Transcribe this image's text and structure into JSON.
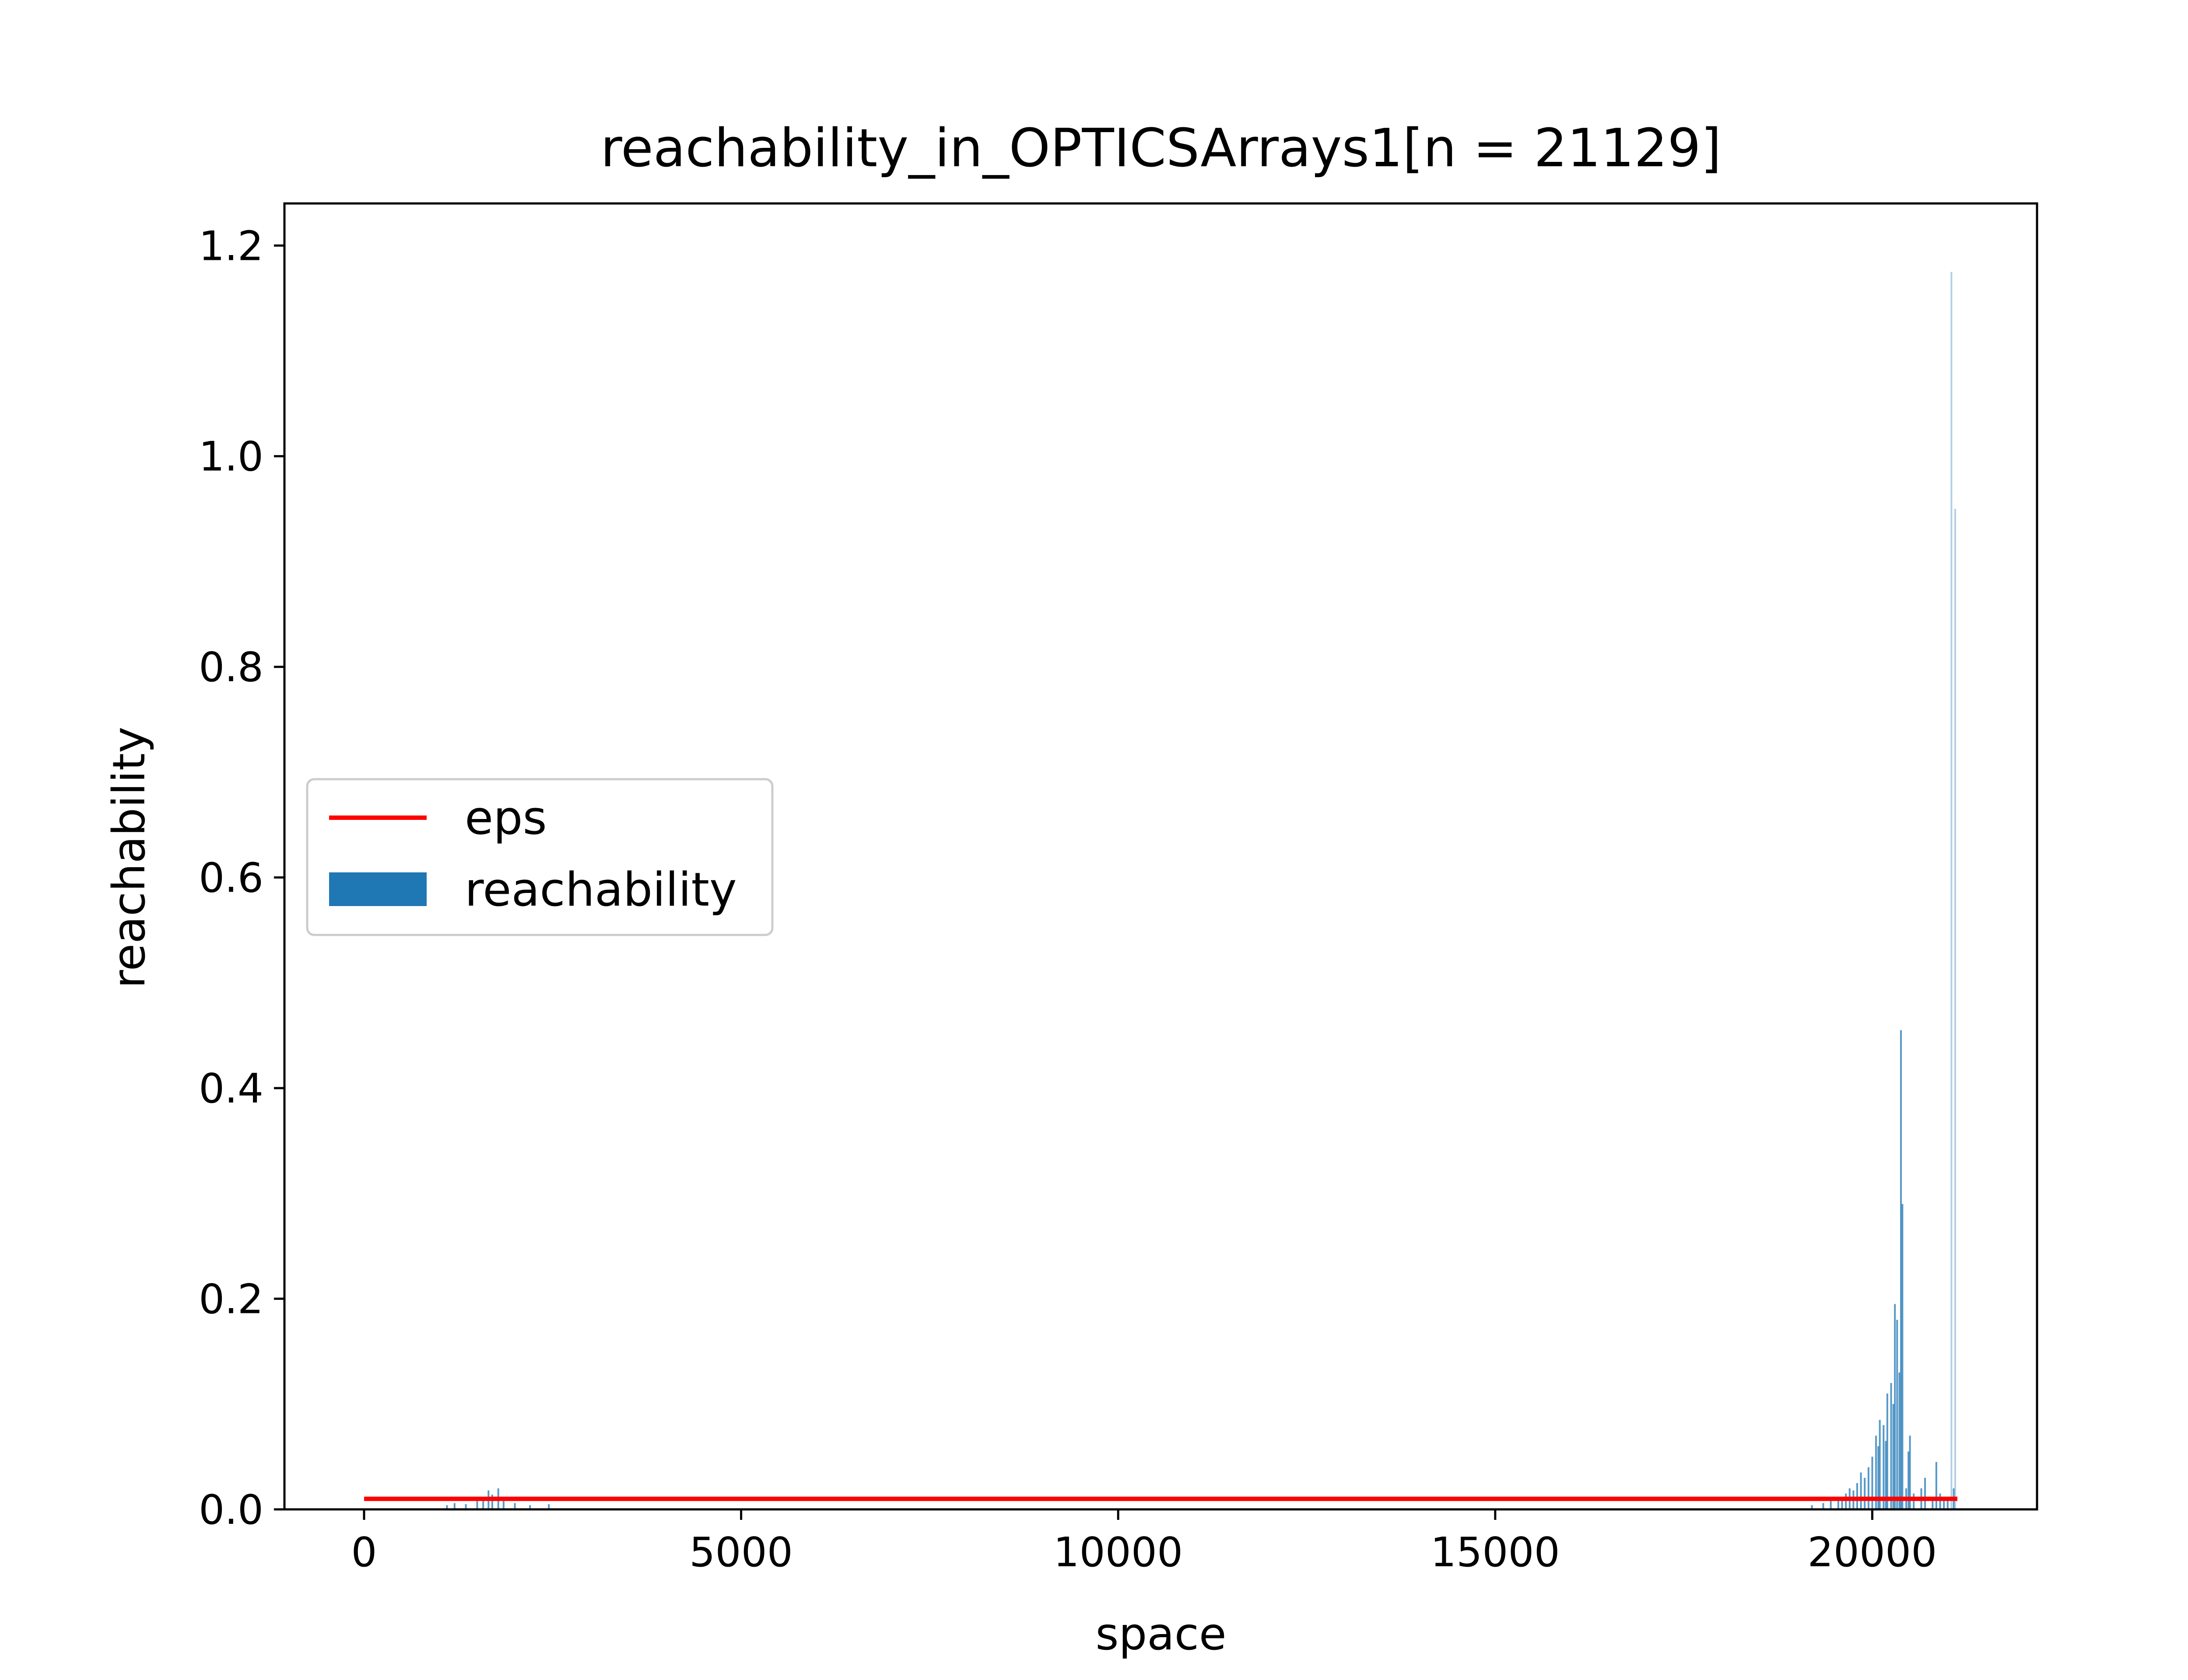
{
  "chart_data": {
    "type": "bar",
    "title": "reachability_in_OPTICSArrays1[n = 21129]",
    "xlabel": "space",
    "ylabel": "reachability",
    "xlim": [
      -1056,
      22185
    ],
    "ylim": [
      0,
      1.24
    ],
    "xticks": [
      0,
      5000,
      10000,
      15000,
      20000
    ],
    "xtick_labels": [
      "0",
      "5000",
      "10000",
      "15000",
      "20000"
    ],
    "yticks": [
      0.0,
      0.2,
      0.4,
      0.6,
      0.8,
      1.0,
      1.2
    ],
    "ytick_labels": [
      "0.0",
      "0.2",
      "0.4",
      "0.6",
      "0.8",
      "1.0",
      "1.2"
    ],
    "legend": {
      "placement": "center-left",
      "entries": [
        {
          "label": "eps",
          "kind": "line",
          "color": "#ff0000"
        },
        {
          "label": "reachability",
          "kind": "patch",
          "color": "#1f77b4"
        }
      ]
    },
    "lines": [
      {
        "name": "eps",
        "x": [
          0,
          21129
        ],
        "y": [
          0.01,
          0.01
        ],
        "color": "#ff0000"
      }
    ],
    "series": [
      {
        "name": "reachability",
        "color": "#1f77b4",
        "x": [
          1100,
          1200,
          1350,
          1500,
          1580,
          1650,
          1700,
          1780,
          1850,
          2000,
          2200,
          2450,
          19200,
          19350,
          19450,
          19550,
          19600,
          19650,
          19700,
          19750,
          19800,
          19850,
          19900,
          19950,
          20000,
          20050,
          20080,
          20100,
          20150,
          20180,
          20200,
          20250,
          20280,
          20300,
          20330,
          20360,
          20380,
          20400,
          20450,
          20480,
          20500,
          20550,
          20650,
          20700,
          20800,
          20850,
          20900,
          20950,
          21000,
          21050,
          21080,
          21100
        ],
        "y": [
          0.004,
          0.006,
          0.005,
          0.008,
          0.012,
          0.018,
          0.014,
          0.02,
          0.01,
          0.006,
          0.004,
          0.005,
          0.004,
          0.006,
          0.008,
          0.012,
          0.01,
          0.015,
          0.02,
          0.018,
          0.025,
          0.035,
          0.03,
          0.04,
          0.05,
          0.07,
          0.06,
          0.085,
          0.08,
          0.065,
          0.11,
          0.12,
          0.1,
          0.195,
          0.18,
          0.13,
          0.455,
          0.29,
          0.02,
          0.055,
          0.07,
          0.015,
          0.02,
          0.03,
          0.01,
          0.045,
          0.015,
          0.012,
          0.01,
          1.175,
          0.02,
          0.95
        ]
      }
    ]
  }
}
